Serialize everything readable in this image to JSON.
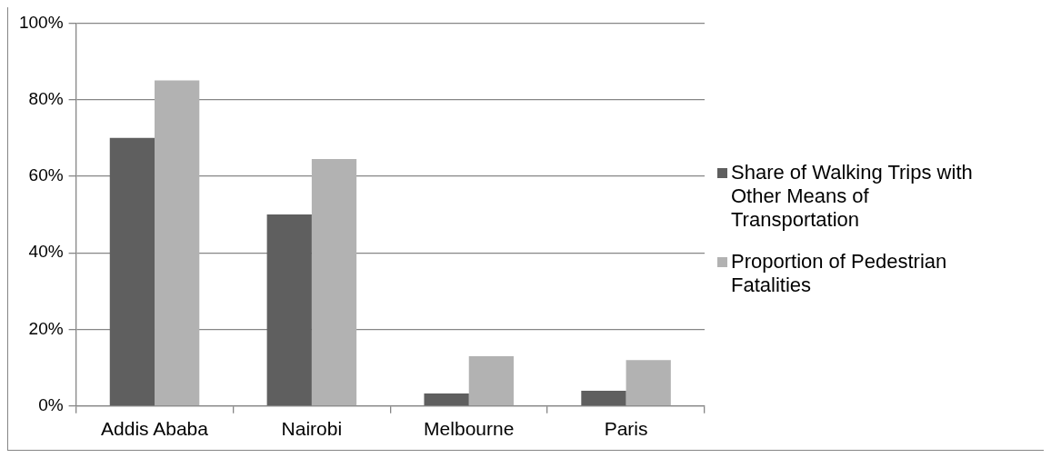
{
  "chart_data": {
    "type": "bar",
    "categories": [
      "Addis Ababa",
      "Nairobi",
      "Melbourne",
      "Paris"
    ],
    "series": [
      {
        "name": "Share of Walking Trips with Other Means of Transportation",
        "color": "#5f5f5f",
        "values": [
          70,
          50,
          3.3,
          4
        ]
      },
      {
        "name": "Proportion of Pedestrian Fatalities",
        "color": "#b2b2b2",
        "values": [
          85,
          64.5,
          13,
          12
        ]
      }
    ],
    "ylim": [
      0,
      100
    ],
    "yticks": [
      {
        "value": 0,
        "label": "0%"
      },
      {
        "value": 20,
        "label": "20%"
      },
      {
        "value": 40,
        "label": "40%"
      },
      {
        "value": 60,
        "label": "60%"
      },
      {
        "value": 80,
        "label": "80%"
      },
      {
        "value": 100,
        "label": "100%"
      }
    ],
    "grid": "y",
    "legend": "right"
  }
}
